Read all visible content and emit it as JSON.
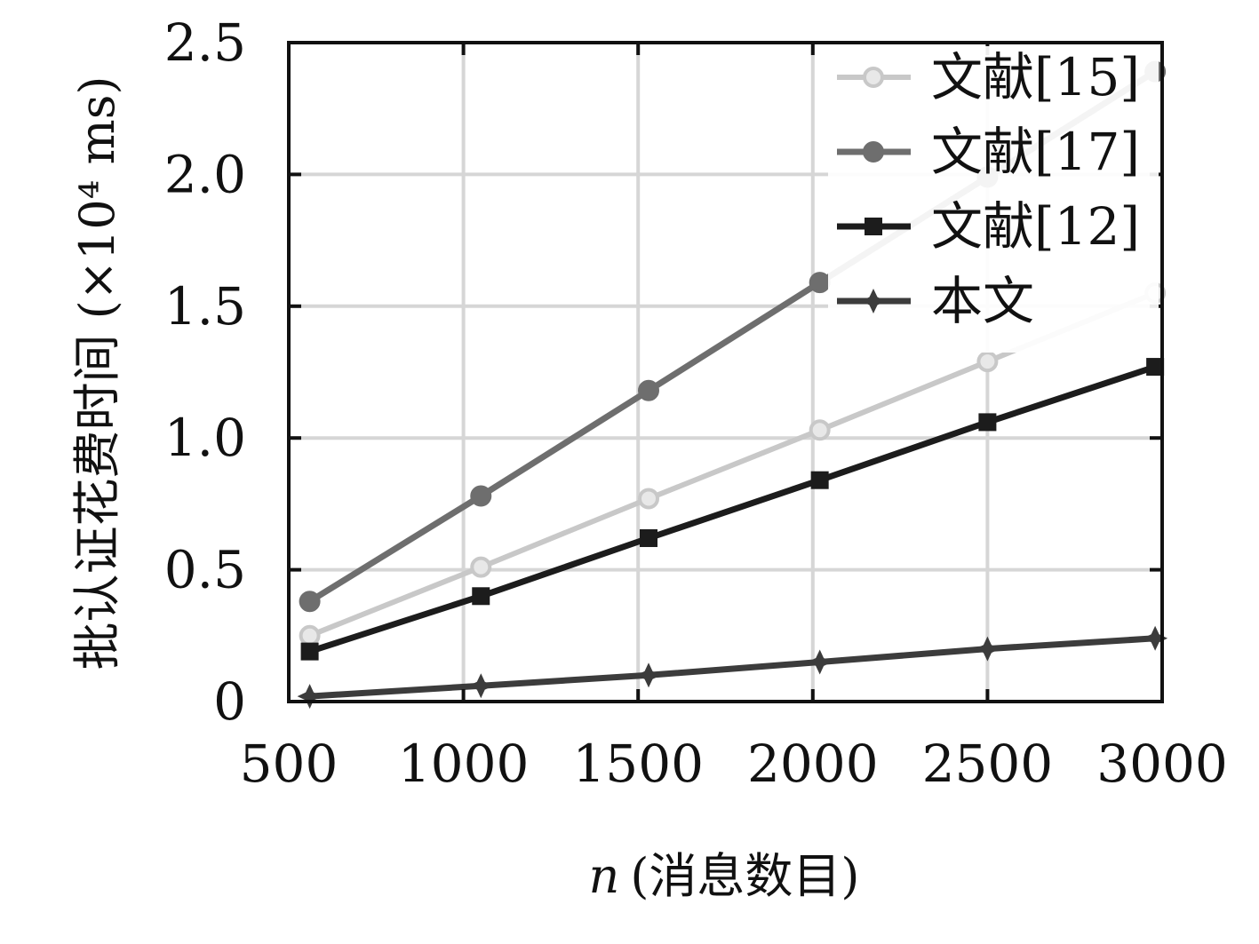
{
  "chart_data": {
    "type": "line",
    "x": [
      560,
      1050,
      1530,
      2020,
      2500,
      2980
    ],
    "xticks": [
      "500",
      "1000",
      "1500",
      "2000",
      "2500",
      "3000"
    ],
    "xtick_values": [
      500,
      1000,
      1500,
      2000,
      2500,
      3000
    ],
    "xlim": [
      500,
      3000
    ],
    "yticks": [
      "0",
      "0.5",
      "1.0",
      "1.5",
      "2.0",
      "2.5"
    ],
    "ytick_values": [
      0,
      0.5,
      1.0,
      1.5,
      2.0,
      2.5
    ],
    "ylim": [
      0,
      2.5
    ],
    "xlabel_italic": "n",
    "xlabel_rest": "(消息数目)",
    "ylabel": "批认证花费时间 (×10⁴ ms)",
    "grid": true,
    "legend_position": "top-right",
    "series": [
      {
        "name": "文献[15]",
        "values": [
          0.25,
          0.51,
          0.77,
          1.03,
          1.29,
          1.55
        ],
        "color": "#c8c8c8",
        "marker": "circle"
      },
      {
        "name": "文献[17]",
        "values": [
          0.38,
          0.78,
          1.18,
          1.59,
          1.99,
          2.39
        ],
        "color": "#6e6e6e",
        "marker": "circle"
      },
      {
        "name": "文献[12]",
        "values": [
          0.19,
          0.4,
          0.62,
          0.84,
          1.06,
          1.27
        ],
        "color": "#1c1c1c",
        "marker": "square"
      },
      {
        "name": "本文",
        "values": [
          0.02,
          0.06,
          0.1,
          0.15,
          0.2,
          0.24
        ],
        "color": "#3c3c3c",
        "marker": "star"
      }
    ]
  }
}
